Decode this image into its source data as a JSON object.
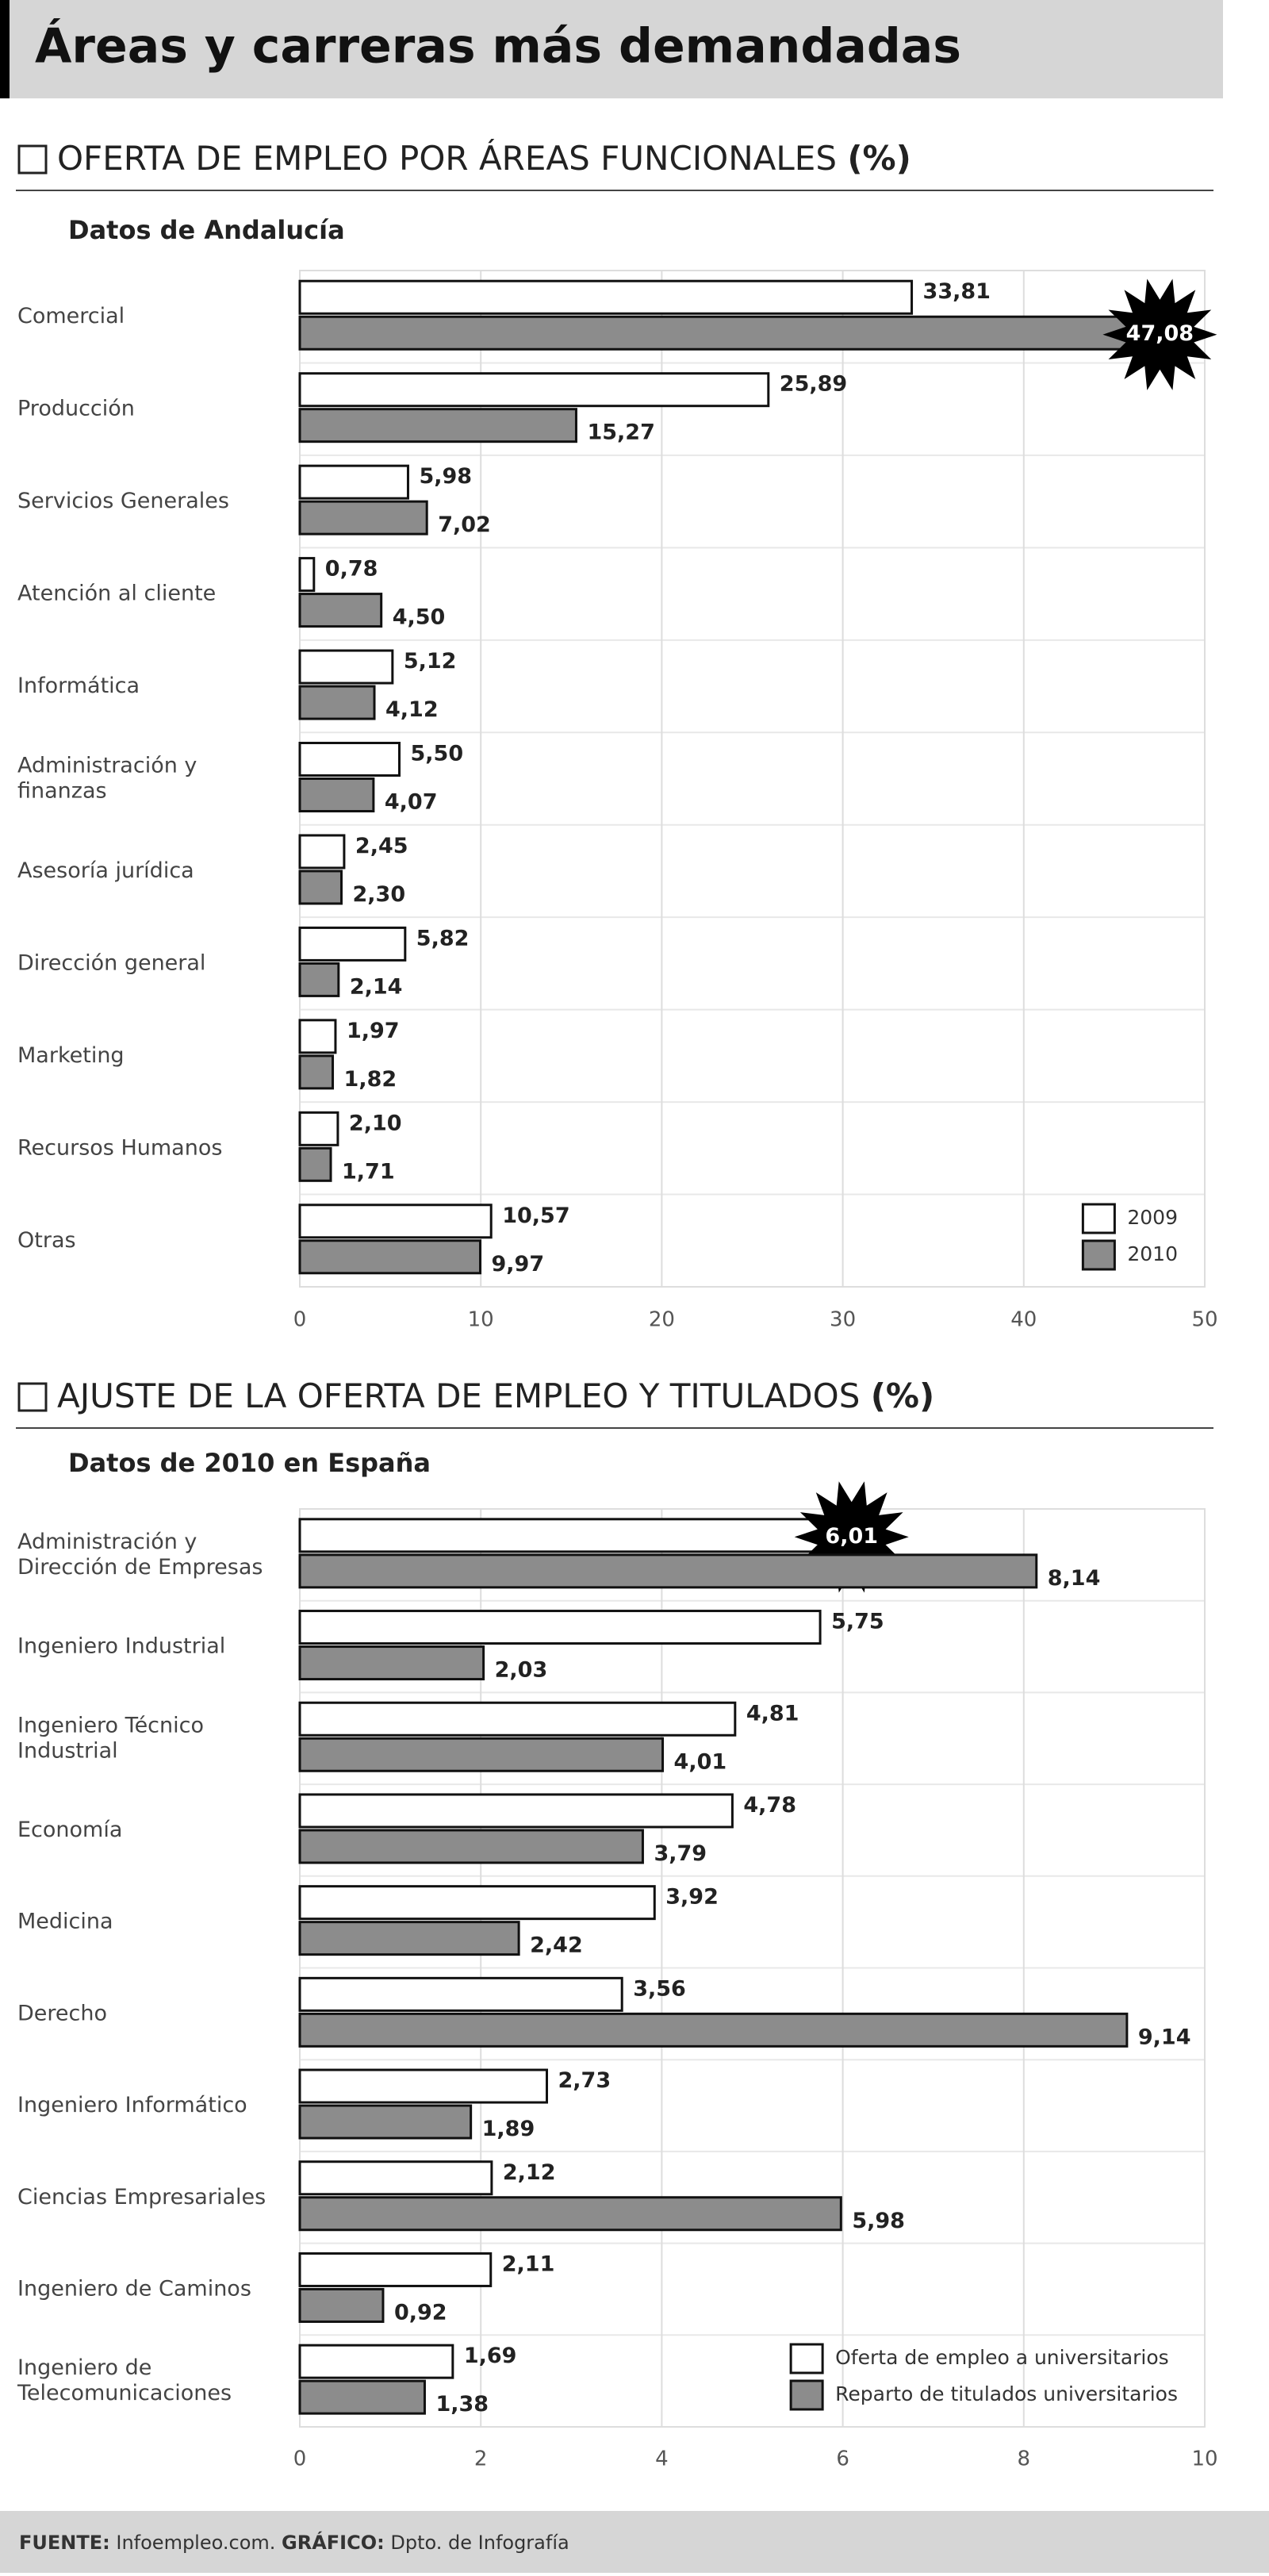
{
  "title": "Áreas y carreras más demandadas",
  "chart_data": [
    {
      "type": "bar",
      "orientation": "horizontal",
      "title": "OFERTA DE EMPLEO POR ÁREAS FUNCIONALES",
      "unit": "(%)",
      "subtitle": "Datos de Andalucía",
      "categories": [
        "Comercial",
        "Producción",
        "Servicios Generales",
        "Atención al cliente",
        "Informática",
        "Administración y finanzas",
        "Asesoría jurídica",
        "Dirección general",
        "Marketing",
        "Recursos Humanos",
        "Otras"
      ],
      "series": [
        {
          "name": "2009",
          "color": "#ffffff",
          "values": [
            33.81,
            25.89,
            5.98,
            0.78,
            5.12,
            5.5,
            2.45,
            5.82,
            1.97,
            2.1,
            10.57
          ],
          "value_labels": [
            "33,81",
            "25,89",
            "5,98",
            "0,78",
            "5,12",
            "5,50",
            "2,45",
            "5,82",
            "1,97",
            "2,10",
            "10,57"
          ]
        },
        {
          "name": "2010",
          "color": "#8c8c8c",
          "values": [
            47.08,
            15.27,
            7.02,
            4.5,
            4.12,
            4.07,
            2.3,
            2.14,
            1.82,
            1.71,
            9.97
          ],
          "value_labels": [
            "47,08",
            "15,27",
            "7,02",
            "4,50",
            "4,12",
            "4,07",
            "2,30",
            "2,14",
            "1,82",
            "1,71",
            "9,97"
          ]
        }
      ],
      "xlim": [
        0,
        50
      ],
      "xticks": [
        0,
        10,
        20,
        30,
        40,
        50
      ],
      "grid": true,
      "legend": "bottom-right"
    },
    {
      "type": "bar",
      "orientation": "horizontal",
      "title": "AJUSTE DE LA OFERTA DE EMPLEO Y TITULADOS",
      "unit": "(%)",
      "subtitle": "Datos de 2010 en España",
      "categories": [
        "Administración y Dirección de Empresas",
        "Ingeniero Industrial",
        "Ingeniero Técnico Industrial",
        "Economía",
        "Medicina",
        "Derecho",
        "Ingeniero Informático",
        "Ciencias Empresariales",
        "Ingeniero de Caminos",
        "Ingeniero de Telecomunicaciones"
      ],
      "series": [
        {
          "name": "Oferta de empleo a universitarios",
          "color": "#ffffff",
          "values": [
            6.01,
            5.75,
            4.81,
            4.78,
            3.92,
            3.56,
            2.73,
            2.12,
            2.11,
            1.69
          ],
          "value_labels": [
            "6,01",
            "5,75",
            "4,81",
            "4,78",
            "3,92",
            "3,56",
            "2,73",
            "2,12",
            "2,11",
            "1,69"
          ]
        },
        {
          "name": "Reparto de titulados universitarios",
          "color": "#8c8c8c",
          "values": [
            8.14,
            2.03,
            4.01,
            3.79,
            2.42,
            9.14,
            1.89,
            5.98,
            0.92,
            1.38
          ],
          "value_labels": [
            "8,14",
            "2,03",
            "4,01",
            "3,79",
            "2,42",
            "9,14",
            "1,89",
            "5,98",
            "0,92",
            "1,38"
          ]
        }
      ],
      "xlim": [
        0,
        10
      ],
      "xticks": [
        0,
        2,
        4,
        6,
        8,
        10
      ],
      "grid": true,
      "legend": "bottom-right"
    }
  ],
  "footer": {
    "source_label": "FUENTE:",
    "source": "Infoempleo.com.",
    "graphic_label": "GRÁFICO:",
    "graphic": "Dpto. de Infografía"
  }
}
